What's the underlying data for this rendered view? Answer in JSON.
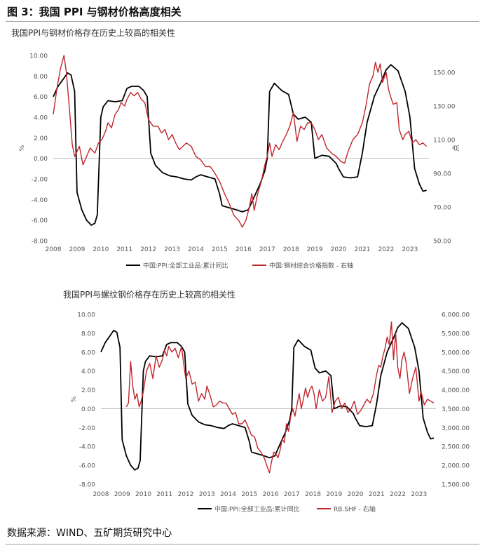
{
  "figure": {
    "title": "图 3：我国 PPI 与钢材价格高度相关",
    "source": "数据来源：WIND、五矿期货研究中心"
  },
  "colors": {
    "ppi_line": "#000000",
    "steel_line": "#c0262d",
    "axis": "#bfbfbf",
    "text": "#555555"
  },
  "chart_data": [
    {
      "type": "line",
      "title": "我国PPI与钢材价格存在历史上较高的相关性",
      "ylabel": "%",
      "y2label": "点",
      "ylim": [
        -8,
        10
      ],
      "y2lim": [
        50,
        160
      ],
      "xlim": [
        2008,
        2023.8
      ],
      "yticks": [
        "10.00",
        "8.00",
        "6.00",
        "4.00",
        "2.00",
        "0.00",
        "-2.00",
        "-4.00",
        "-6.00",
        "-8.00"
      ],
      "y2ticks": [
        "150.00",
        "130.00",
        "110.00",
        "90.00",
        "70.00",
        "50.00"
      ],
      "xticks": [
        "2008",
        "2009",
        "2010",
        "2011",
        "2012",
        "2013",
        "2014",
        "2015",
        "2016",
        "2017",
        "2018",
        "2019",
        "2020",
        "2021",
        "2022",
        "2023"
      ],
      "series": [
        {
          "name": "中国:PPI:全部工业品:累计同比",
          "axis": "left",
          "x": [
            2008.0,
            2008.2,
            2008.45,
            2008.6,
            2008.75,
            2008.9,
            2009.0,
            2009.2,
            2009.4,
            2009.6,
            2009.75,
            2009.85,
            2010.0,
            2010.1,
            2010.3,
            2010.6,
            2010.9,
            2011.1,
            2011.3,
            2011.6,
            2011.8,
            2011.95,
            2012.1,
            2012.3,
            2012.6,
            2012.9,
            2013.2,
            2013.5,
            2013.8,
            2014.0,
            2014.2,
            2014.5,
            2014.8,
            2015.0,
            2015.1,
            2015.4,
            2015.7,
            2015.95,
            2016.2,
            2016.4,
            2016.7,
            2016.9,
            2017.0,
            2017.1,
            2017.3,
            2017.6,
            2017.9,
            2018.1,
            2018.3,
            2018.6,
            2018.85,
            2019.0,
            2019.3,
            2019.6,
            2019.9,
            2020.0,
            2020.2,
            2020.5,
            2020.8,
            2021.0,
            2021.2,
            2021.5,
            2021.8,
            2022.0,
            2022.2,
            2022.5,
            2022.8,
            2023.0,
            2023.2,
            2023.4,
            2023.55,
            2023.7
          ],
          "values": [
            6.0,
            7.0,
            7.8,
            8.3,
            8.1,
            6.5,
            -3.3,
            -5.0,
            -6.0,
            -6.5,
            -6.3,
            -5.5,
            4.0,
            5.0,
            5.6,
            5.5,
            5.6,
            6.8,
            7.0,
            7.0,
            6.6,
            6.0,
            0.5,
            -0.7,
            -1.4,
            -1.7,
            -1.8,
            -2.0,
            -2.1,
            -1.8,
            -1.6,
            -1.8,
            -2.0,
            -3.5,
            -4.6,
            -4.8,
            -5.0,
            -5.2,
            -5.0,
            -4.0,
            -2.5,
            -1.2,
            0.0,
            6.5,
            7.3,
            6.6,
            6.2,
            4.3,
            3.8,
            4.0,
            3.5,
            0.0,
            0.3,
            0.2,
            -0.5,
            -1.0,
            -1.8,
            -1.9,
            -1.8,
            0.5,
            3.5,
            6.0,
            7.5,
            8.6,
            9.1,
            8.5,
            6.5,
            4.0,
            -1.0,
            -2.5,
            -3.2,
            -3.1
          ]
        },
        {
          "name": "中国:钢材综合价格指数 - 右轴",
          "axis": "right",
          "x": [
            2008.0,
            2008.15,
            2008.3,
            2008.45,
            2008.55,
            2008.7,
            2008.8,
            2008.9,
            2009.1,
            2009.25,
            2009.4,
            2009.55,
            2009.75,
            2009.9,
            2010.05,
            2010.2,
            2010.3,
            2010.45,
            2010.6,
            2010.75,
            2010.85,
            2011.0,
            2011.1,
            2011.25,
            2011.4,
            2011.55,
            2011.7,
            2011.85,
            2012.0,
            2012.2,
            2012.4,
            2012.55,
            2012.7,
            2012.85,
            2013.0,
            2013.15,
            2013.3,
            2013.45,
            2013.6,
            2013.8,
            2014.0,
            2014.2,
            2014.4,
            2014.6,
            2014.8,
            2015.0,
            2015.2,
            2015.4,
            2015.6,
            2015.8,
            2015.95,
            2016.1,
            2016.25,
            2016.35,
            2016.45,
            2016.6,
            2016.75,
            2016.9,
            2017.0,
            2017.1,
            2017.2,
            2017.35,
            2017.5,
            2017.65,
            2017.8,
            2017.95,
            2018.1,
            2018.25,
            2018.4,
            2018.55,
            2018.7,
            2018.85,
            2019.0,
            2019.15,
            2019.3,
            2019.5,
            2019.7,
            2019.9,
            2020.1,
            2020.25,
            2020.4,
            2020.6,
            2020.8,
            2021.0,
            2021.15,
            2021.3,
            2021.45,
            2021.55,
            2021.65,
            2021.75,
            2021.85,
            2022.0,
            2022.1,
            2022.2,
            2022.3,
            2022.45,
            2022.55,
            2022.7,
            2022.8,
            2022.95,
            2023.1,
            2023.25,
            2023.4,
            2023.55,
            2023.7
          ],
          "values": [
            125,
            140,
            152,
            160,
            150,
            125,
            107,
            100,
            106,
            95,
            100,
            105,
            102,
            108,
            110,
            115,
            120,
            117,
            125,
            128,
            132,
            130,
            134,
            138,
            136,
            138,
            134,
            132,
            122,
            118,
            118,
            114,
            116,
            110,
            113,
            108,
            104,
            106,
            108,
            106,
            100,
            98,
            94,
            94,
            90,
            85,
            78,
            72,
            65,
            62,
            58,
            62,
            70,
            78,
            68,
            78,
            85,
            95,
            100,
            108,
            100,
            107,
            104,
            109,
            113,
            118,
            126,
            109,
            118,
            116,
            120,
            120,
            116,
            110,
            113,
            105,
            102,
            100,
            97,
            96,
            103,
            110,
            113,
            120,
            130,
            143,
            148,
            156,
            150,
            155,
            144,
            150,
            140,
            135,
            131,
            132,
            116,
            110,
            113,
            115,
            108,
            110,
            107,
            108,
            106
          ]
        }
      ]
    },
    {
      "type": "line",
      "title": "我国PPI与螺纹钢价格存在历史上较高的相关性",
      "ylabel": "%",
      "y2label": "",
      "ylim": [
        -8,
        10
      ],
      "y2lim": [
        1500,
        6000
      ],
      "xlim": [
        2008,
        2023.8
      ],
      "yticks": [
        "10.00",
        "8.00",
        "6.00",
        "4.00",
        "2.00",
        "0.00",
        "-2.00",
        "-4.00",
        "-6.00",
        "-8.00"
      ],
      "y2ticks": [
        "6,000.00",
        "5,500.00",
        "5,000.00",
        "4,500.00",
        "4,000.00",
        "3,500.00",
        "3,000.00",
        "2,500.00",
        "2,000.00",
        "1,500.00"
      ],
      "xticks": [
        "2008",
        "2009",
        "2010",
        "2011",
        "2012",
        "2013",
        "2014",
        "2015",
        "2016",
        "2017",
        "2018",
        "2019",
        "2020",
        "2021",
        "2022",
        "2023"
      ],
      "series": [
        {
          "name": "中国:PPI:全部工业品:累计同比",
          "axis": "left",
          "x": [
            2008.0,
            2008.2,
            2008.45,
            2008.6,
            2008.75,
            2008.9,
            2009.0,
            2009.2,
            2009.4,
            2009.6,
            2009.75,
            2009.85,
            2010.0,
            2010.1,
            2010.3,
            2010.6,
            2010.9,
            2011.1,
            2011.3,
            2011.6,
            2011.8,
            2011.95,
            2012.1,
            2012.3,
            2012.6,
            2012.9,
            2013.2,
            2013.5,
            2013.8,
            2014.0,
            2014.2,
            2014.5,
            2014.8,
            2015.0,
            2015.1,
            2015.4,
            2015.7,
            2015.95,
            2016.2,
            2016.4,
            2016.7,
            2016.9,
            2017.0,
            2017.1,
            2017.3,
            2017.6,
            2017.9,
            2018.1,
            2018.3,
            2018.6,
            2018.85,
            2019.0,
            2019.3,
            2019.6,
            2019.9,
            2020.0,
            2020.2,
            2020.5,
            2020.8,
            2021.0,
            2021.2,
            2021.5,
            2021.8,
            2022.0,
            2022.2,
            2022.5,
            2022.8,
            2023.0,
            2023.2,
            2023.4,
            2023.55,
            2023.7
          ],
          "values": [
            6.0,
            7.0,
            7.8,
            8.3,
            8.1,
            6.5,
            -3.3,
            -5.0,
            -6.0,
            -6.5,
            -6.3,
            -5.5,
            4.0,
            5.0,
            5.6,
            5.5,
            5.6,
            6.8,
            7.0,
            7.0,
            6.6,
            6.0,
            0.5,
            -0.7,
            -1.4,
            -1.7,
            -1.8,
            -2.0,
            -2.1,
            -1.8,
            -1.6,
            -1.8,
            -2.0,
            -3.5,
            -4.6,
            -4.8,
            -5.0,
            -5.2,
            -5.0,
            -4.0,
            -2.5,
            -1.2,
            0.0,
            6.5,
            7.3,
            6.6,
            6.2,
            4.3,
            3.8,
            4.0,
            3.5,
            0.0,
            0.3,
            0.2,
            -0.5,
            -1.0,
            -1.8,
            -1.9,
            -1.8,
            0.5,
            3.5,
            6.0,
            7.5,
            8.6,
            9.1,
            8.5,
            6.5,
            4.0,
            -1.0,
            -2.5,
            -3.2,
            -3.1
          ]
        },
        {
          "name": "RB.SHF - 右轴",
          "axis": "right",
          "x": [
            2009.2,
            2009.3,
            2009.4,
            2009.5,
            2009.6,
            2009.7,
            2009.8,
            2009.9,
            2010.0,
            2010.15,
            2010.3,
            2010.45,
            2010.6,
            2010.75,
            2010.9,
            2011.0,
            2011.1,
            2011.2,
            2011.35,
            2011.5,
            2011.65,
            2011.8,
            2011.9,
            2012.0,
            2012.15,
            2012.3,
            2012.45,
            2012.6,
            2012.75,
            2012.9,
            2013.0,
            2013.15,
            2013.3,
            2013.45,
            2013.6,
            2013.75,
            2013.9,
            2014.05,
            2014.2,
            2014.35,
            2014.5,
            2014.65,
            2014.8,
            2014.95,
            2015.1,
            2015.25,
            2015.4,
            2015.55,
            2015.7,
            2015.85,
            2015.95,
            2016.05,
            2016.15,
            2016.25,
            2016.35,
            2016.45,
            2016.55,
            2016.65,
            2016.75,
            2016.85,
            2016.95,
            2017.05,
            2017.15,
            2017.25,
            2017.35,
            2017.45,
            2017.55,
            2017.65,
            2017.75,
            2017.85,
            2017.95,
            2018.05,
            2018.15,
            2018.3,
            2018.45,
            2018.6,
            2018.75,
            2018.9,
            2019.05,
            2019.2,
            2019.35,
            2019.5,
            2019.65,
            2019.8,
            2019.95,
            2020.1,
            2020.25,
            2020.4,
            2020.55,
            2020.7,
            2020.85,
            2021.0,
            2021.1,
            2021.2,
            2021.3,
            2021.4,
            2021.5,
            2021.6,
            2021.7,
            2021.8,
            2021.9,
            2022.0,
            2022.1,
            2022.2,
            2022.3,
            2022.4,
            2022.55,
            2022.7,
            2022.85,
            2023.0,
            2023.1,
            2023.25,
            2023.4,
            2023.55,
            2023.7
          ],
          "values": [
            3550,
            3650,
            4750,
            4100,
            3750,
            3900,
            3550,
            3700,
            3950,
            4500,
            4700,
            4300,
            4900,
            4600,
            4800,
            5050,
            4900,
            5150,
            5000,
            5100,
            4850,
            5150,
            4700,
            4300,
            4500,
            4150,
            4200,
            3700,
            3900,
            3750,
            4100,
            3850,
            3550,
            3600,
            3700,
            3650,
            3650,
            3500,
            3350,
            3400,
            3100,
            3100,
            3200,
            3000,
            2800,
            2750,
            2450,
            2350,
            2200,
            1950,
            1800,
            2100,
            2350,
            2300,
            2200,
            2400,
            2700,
            2600,
            3100,
            2900,
            3300,
            3500,
            3300,
            3600,
            3900,
            3500,
            3750,
            4050,
            3800,
            4000,
            4100,
            3900,
            3500,
            4000,
            3700,
            3800,
            4350,
            3400,
            3700,
            3800,
            3500,
            3650,
            3400,
            3500,
            3700,
            3350,
            3450,
            3600,
            3750,
            3650,
            3900,
            4400,
            4650,
            4600,
            4900,
            5100,
            5400,
            5200,
            5800,
            4800,
            5500,
            4600,
            4300,
            4800,
            5000,
            4700,
            3900,
            4300,
            4600,
            3700,
            3950,
            3600,
            3750,
            3700,
            3650
          ]
        }
      ]
    }
  ]
}
